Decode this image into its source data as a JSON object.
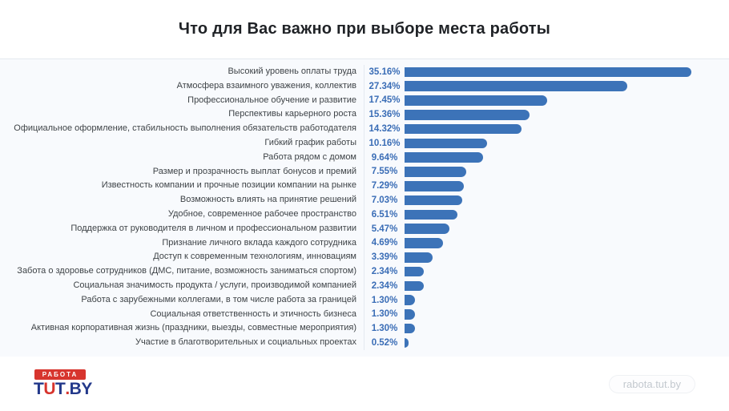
{
  "chart_data": {
    "type": "bar",
    "orientation": "horizontal",
    "title": "Что для Вас важно при выборе места работы",
    "xlabel": "",
    "ylabel": "",
    "xlim": [
      0,
      35.16
    ],
    "grid": false,
    "legend": false,
    "bar_color": "#3c73b8",
    "categories": [
      "Высокий уровень оплаты труда",
      "Атмосфера взаимного уважения, коллектив",
      "Профессиональное обучение и развитие",
      "Перспективы карьерного роста",
      "Официальное оформление, стабильность выполнения обязательств работодателя",
      "Гибкий график работы",
      "Работа рядом с домом",
      "Размер и прозрачность выплат бонусов и премий",
      "Известность компании и прочные позиции компании на рынке",
      "Возможность влиять на принятие решений",
      "Удобное, современное рабочее пространство",
      "Поддержка от руководителя в личном и профессиональном развитии",
      "Признание личного вклада каждого сотрудника",
      "Доступ к современным технологиям, инновациям",
      "Забота о здоровье сотрудников (ДМС, питание, возможность заниматься спортом)",
      "Социальная значимость продукта / услуги, производимой компанией",
      "Работа с зарубежными коллегами, в том числе работа за границей",
      "Социальная ответственность и этичность бизнеса",
      "Активная корпоративная жизнь (праздники, выезды, совместные мероприятия)",
      "Участие в благотворительных и социальных проектах"
    ],
    "values": [
      35.16,
      27.34,
      17.45,
      15.36,
      14.32,
      10.16,
      9.64,
      7.55,
      7.29,
      7.03,
      6.51,
      5.47,
      4.69,
      3.39,
      2.34,
      2.34,
      1.3,
      1.3,
      1.3,
      0.52
    ],
    "value_labels": [
      "35.16%",
      "27.34%",
      "17.45%",
      "15.36%",
      "14.32%",
      "10.16%",
      "9.64%",
      "7.55%",
      "7.29%",
      "7.03%",
      "6.51%",
      "5.47%",
      "4.69%",
      "3.39%",
      "2.34%",
      "2.34%",
      "1.30%",
      "1.30%",
      "1.30%",
      "0.52%"
    ]
  },
  "footer": {
    "logo": {
      "banner": "РАБОТА",
      "t1": "T",
      "u": "U",
      "t2": "T",
      "dot": ".",
      "by": "BY"
    },
    "badge": "rabota.tut.by"
  },
  "colors": {
    "bar": "#3c73b8",
    "value_text": "#3a6db6",
    "label_text": "#3e4347",
    "panel_bg": "#f8fafd",
    "brand_red": "#d7352e",
    "brand_navy": "#23398b"
  }
}
